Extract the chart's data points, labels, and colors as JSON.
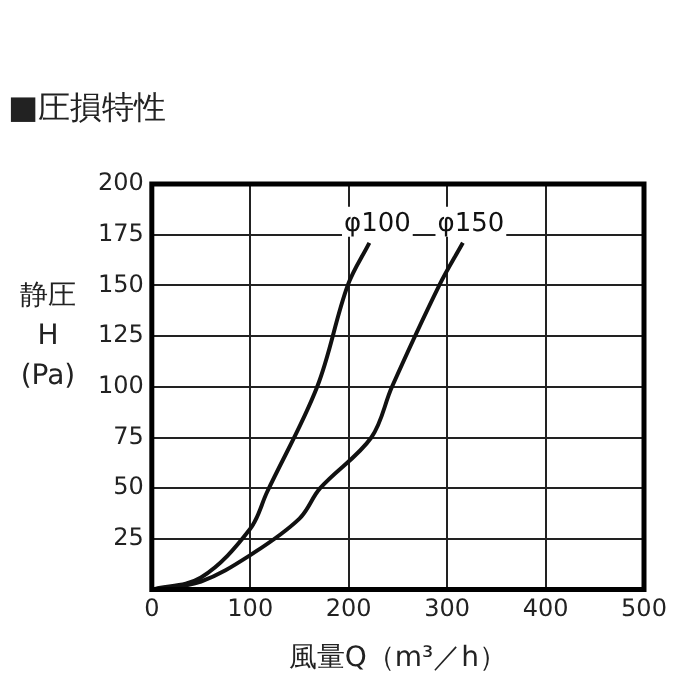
{
  "chart_data": {
    "type": "line",
    "title": "■圧損特性",
    "xlabel": "風量Q（m³／h）",
    "ylabel": "静圧 H (Pa)",
    "series": [
      {
        "name": "φ100",
        "color": "#111111",
        "x": [
          0,
          50,
          100,
          117,
          168,
          199,
          221
        ],
        "values": [
          0,
          6,
          30,
          48,
          100,
          150,
          171
        ]
      },
      {
        "name": "φ150",
        "color": "#111111",
        "x": [
          0,
          50,
          100,
          150,
          171,
          223,
          244,
          292,
          316
        ],
        "values": [
          0,
          4,
          17,
          35,
          50,
          75,
          100,
          150,
          171
        ]
      }
    ],
    "xlim": [
      0,
      500
    ],
    "xticks": [
      0,
      100,
      200,
      300,
      400,
      500
    ],
    "ylim": [
      0,
      200
    ],
    "yticks": [
      25,
      50,
      75,
      100,
      125,
      150,
      175,
      200
    ],
    "grid": true,
    "legend": false,
    "marker": "none",
    "line_style": "solid"
  }
}
